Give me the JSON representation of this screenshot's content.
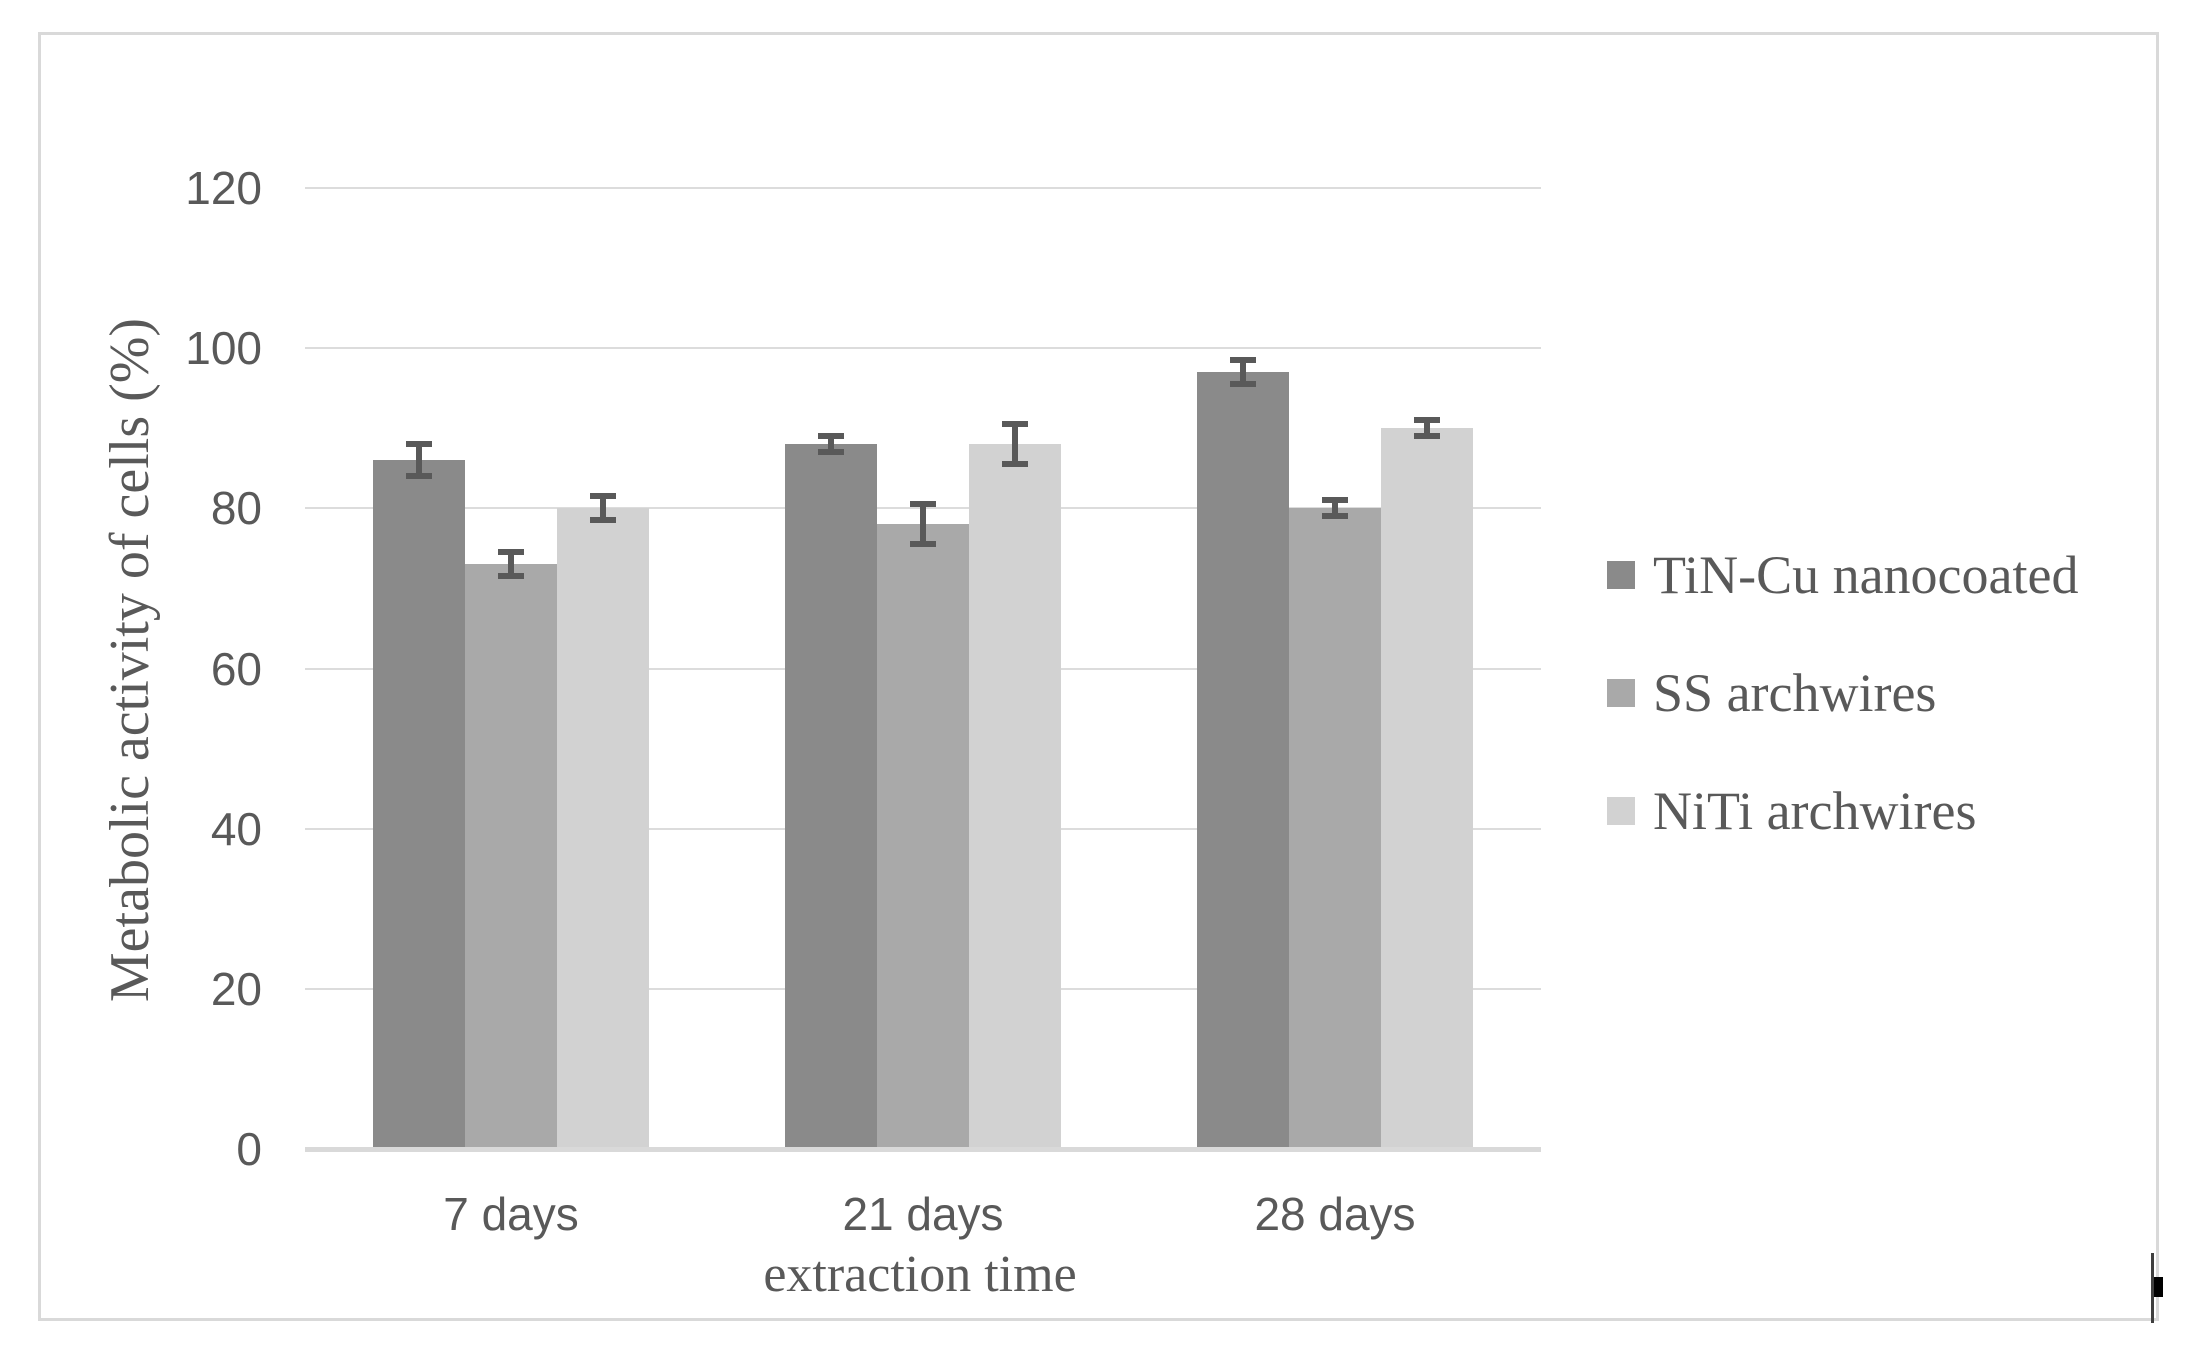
{
  "figure": {
    "background": "#ffffff",
    "frame_border_color": "#d9d9d9"
  },
  "chart_data": {
    "type": "bar",
    "title": "",
    "categories": [
      "7 days",
      "21 days",
      "28 days"
    ],
    "series": [
      {
        "name": "TiN-Cu nanocoated",
        "color": "#8a8a8a",
        "values": [
          86,
          88,
          97
        ],
        "errors": [
          2,
          1,
          1.5
        ]
      },
      {
        "name": "SS archwires",
        "color": "#a9a9a9",
        "values": [
          73,
          78,
          80
        ],
        "errors": [
          1.5,
          2.5,
          1
        ]
      },
      {
        "name": "NiTi archwires",
        "color": "#d2d2d2",
        "values": [
          80,
          88,
          90
        ],
        "errors": [
          1.5,
          2.5,
          1
        ]
      }
    ],
    "xlabel": "extraction time",
    "ylabel": "Metabolic activity of cells (%)",
    "ylim": [
      0,
      120
    ],
    "yticks": [
      0,
      20,
      40,
      60,
      80,
      100,
      120
    ],
    "grid": "horizontal-only",
    "gridline_color": "#dcdcdc",
    "axis_line_color": "#d9d9d9",
    "error_bar_color": "#595959",
    "tick_label_color": "#595959",
    "axis_title_color": "#595959",
    "legend_text_color": "#595959",
    "legend_position": "right"
  }
}
